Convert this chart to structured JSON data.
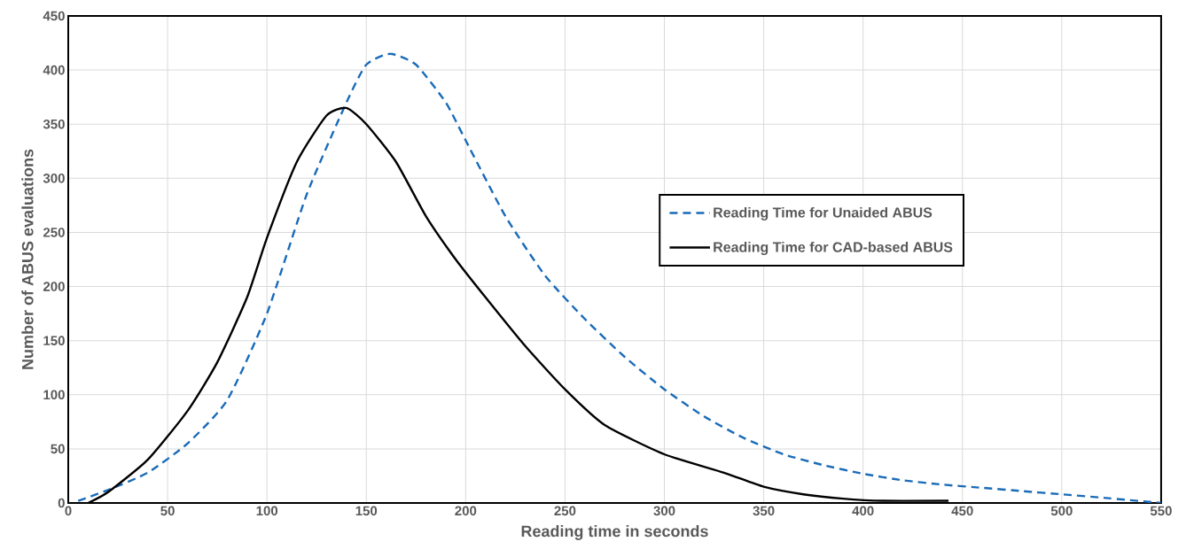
{
  "chart_data": {
    "type": "line",
    "xlabel": "Reading time in seconds",
    "ylabel": "Number of ABUS evaluations",
    "xlim": [
      0,
      550
    ],
    "xticks": [
      0,
      50,
      100,
      150,
      200,
      250,
      300,
      350,
      400,
      450,
      500,
      550
    ],
    "ylim": [
      0,
      450
    ],
    "yticks": [
      0,
      50,
      100,
      150,
      200,
      250,
      300,
      350,
      400,
      450
    ],
    "grid": true,
    "legend": "right",
    "marker": "none",
    "series": [
      {
        "name": "Reading Time for Unaided ABUS",
        "color": "#1a6bb8",
        "line_style": "dashed",
        "x": [
          5,
          20,
          40,
          60,
          80,
          100,
          120,
          140,
          150,
          162,
          175,
          190,
          200,
          220,
          240,
          260,
          280,
          300,
          320,
          340,
          360,
          380,
          400,
          420,
          440,
          460,
          480,
          500,
          520,
          550
        ],
        "values": [
          2,
          12,
          28,
          55,
          95,
          175,
          285,
          370,
          405,
          415,
          405,
          370,
          335,
          265,
          210,
          170,
          135,
          105,
          80,
          60,
          45,
          35,
          27,
          21,
          17,
          14,
          11,
          8,
          5,
          0
        ]
      },
      {
        "name": "Reading Time for CAD-based ABUS",
        "color": "#000000",
        "line_style": "solid",
        "x": [
          10,
          20,
          40,
          60,
          75,
          90,
          100,
          115,
          130,
          140,
          150,
          165,
          180,
          195,
          210,
          230,
          250,
          270,
          300,
          330,
          350,
          370,
          390,
          410,
          443
        ],
        "values": [
          0,
          10,
          40,
          85,
          130,
          190,
          245,
          315,
          358,
          365,
          350,
          315,
          265,
          225,
          190,
          145,
          105,
          72,
          45,
          28,
          15,
          8,
          4,
          2,
          2
        ]
      }
    ]
  }
}
